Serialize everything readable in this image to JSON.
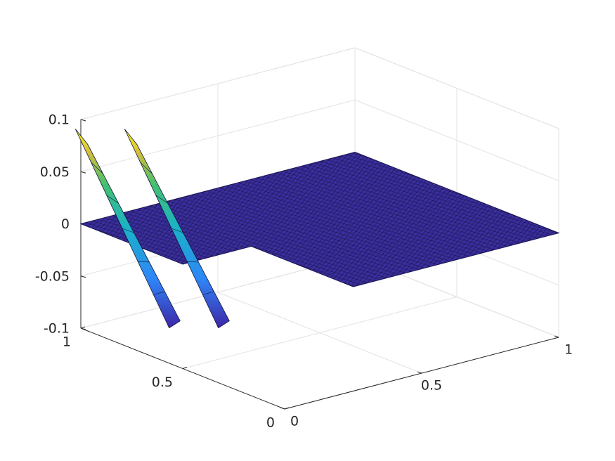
{
  "chart_data": {
    "type": "surface",
    "title": "",
    "xlabel": "",
    "ylabel": "",
    "zlabel": "",
    "grid": true,
    "xlim": [
      0,
      1
    ],
    "ylim": [
      0,
      1
    ],
    "zlim": [
      -0.1,
      0.1
    ],
    "x_ticks": [
      "0",
      "0.5",
      "1"
    ],
    "y_ticks": [
      "0",
      "0.5",
      "1"
    ],
    "z_ticks": [
      "-0.1",
      "-0.05",
      "0",
      "0.05",
      "0.1"
    ],
    "surface": {
      "baseline_z": 0,
      "extent": {
        "x": [
          0,
          1
        ],
        "y": [
          0,
          1
        ]
      },
      "notch": {
        "x": [
          0,
          0.25
        ],
        "y": [
          0,
          0.5
        ]
      },
      "features": [
        {
          "name": "",
          "x": 0.13,
          "y": [
            0.5,
            0.96
          ],
          "z_min": -0.07,
          "z_max": 0.085
        },
        {
          "name": "",
          "x": 0.13,
          "y": [
            0.5,
            0.96
          ],
          "z_min": -0.07,
          "z_max": 0.085
        }
      ]
    },
    "colormap": [
      "#3e26a8",
      "#2e87f7",
      "#1ab2c8",
      "#43c16f",
      "#d3bd3a",
      "#f9fb15"
    ]
  }
}
